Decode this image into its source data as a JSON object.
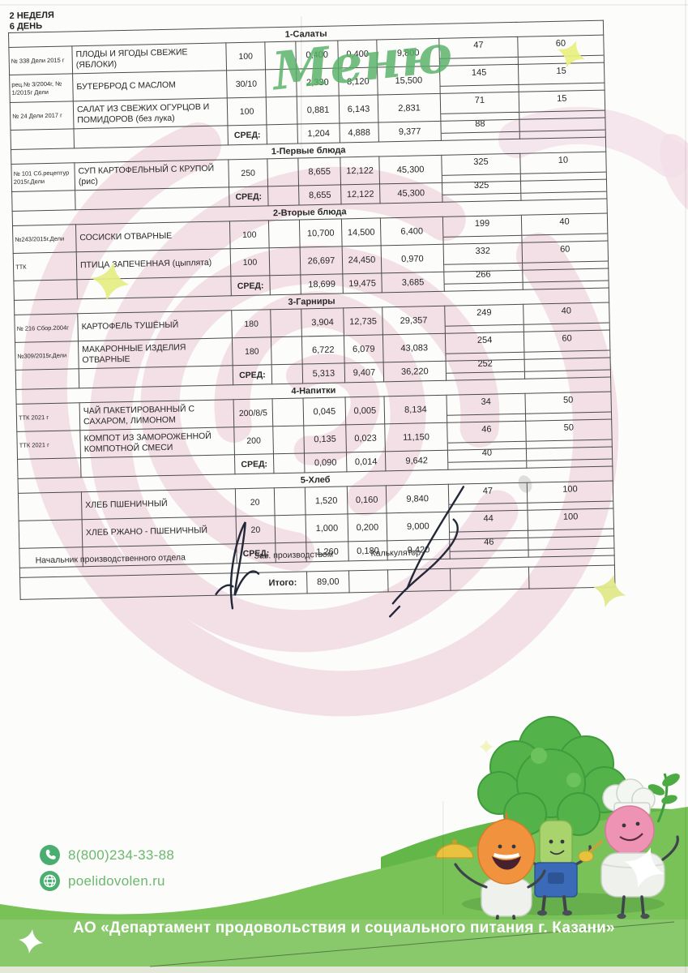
{
  "header": {
    "week": "2 НЕДЕЛЯ",
    "day": "6 ДЕНЬ"
  },
  "watermark": {
    "text": "Меню"
  },
  "menu_table": {
    "sections": [
      {
        "title": "1-Салаты",
        "rows": [
          {
            "ref": "№ 338 Дели 2015 г",
            "name": "ПЛОДЫ И ЯГОДЫ СВЕЖИЕ (ЯБЛОКИ)",
            "portion": "100",
            "v1": "0,400",
            "v2": "0,400",
            "v3": "9,800",
            "v4": "47",
            "v5": "60"
          },
          {
            "ref": "рец.№ 3/2004г, № 1/2015г Дели",
            "name": "БУТЕРБРОД С МАСЛОМ",
            "portion": "30/10",
            "v1": "2,330",
            "v2": "8,120",
            "v3": "15,500",
            "v4": "145",
            "v5": "15"
          },
          {
            "ref": "№ 24 Дели 2017 г",
            "name": "САЛАТ ИЗ СВЕЖИХ ОГУРЦОВ И ПОМИДОРОВ (без лука)",
            "portion": "100",
            "v1": "0,881",
            "v2": "6,143",
            "v3": "2,831",
            "v4": "71",
            "v5": "15"
          }
        ],
        "avg": {
          "label": "СРЕД:",
          "v1": "1,204",
          "v2": "4,888",
          "v3": "9,377",
          "v4": "88",
          "v5": ""
        }
      },
      {
        "title": "1-Первые блюда",
        "rows": [
          {
            "ref": "№ 101  Сб.рецептур 2015г.Дели",
            "name": "СУП КАРТОФЕЛЬНЫЙ С КРУПОЙ (рис)",
            "portion": "250",
            "v1": "8,655",
            "v2": "12,122",
            "v3": "45,300",
            "v4": "325",
            "v5": "10"
          }
        ],
        "avg": {
          "label": "СРЕД:",
          "v1": "8,655",
          "v2": "12,122",
          "v3": "45,300",
          "v4": "325",
          "v5": ""
        }
      },
      {
        "title": "2-Вторые блюда",
        "rows": [
          {
            "ref": "№243/2015г.Дели",
            "name": "СОСИСКИ ОТВАРНЫЕ",
            "portion": "100",
            "v1": "10,700",
            "v2": "14,500",
            "v3": "6,400",
            "v4": "199",
            "v5": "40"
          },
          {
            "ref": "ТТК",
            "name": "ПТИЦА ЗАПЕЧЕННАЯ (цыплята)",
            "portion": "100",
            "v1": "26,697",
            "v2": "24,450",
            "v3": "0,970",
            "v4": "332",
            "v5": "60"
          }
        ],
        "avg": {
          "label": "СРЕД:",
          "v1": "18,699",
          "v2": "19,475",
          "v3": "3,685",
          "v4": "266",
          "v5": ""
        }
      },
      {
        "title": "3-Гарниры",
        "rows": [
          {
            "ref": "№ 216 Сбор.2004г",
            "name": "КАРТОФЕЛЬ ТУШЁНЫЙ",
            "portion": "180",
            "v1": "3,904",
            "v2": "12,735",
            "v3": "29,357",
            "v4": "249",
            "v5": "40"
          },
          {
            "ref": "№309/2015г.Дели",
            "name": "МАКАРОННЫЕ ИЗДЕЛИЯ ОТВАРНЫЕ",
            "portion": "180",
            "v1": "6,722",
            "v2": "6,079",
            "v3": "43,083",
            "v4": "254",
            "v5": "60"
          }
        ],
        "avg": {
          "label": "СРЕД:",
          "v1": "5,313",
          "v2": "9,407",
          "v3": "36,220",
          "v4": "252",
          "v5": ""
        }
      },
      {
        "title": "4-Напитки",
        "rows": [
          {
            "ref": "ТТК 2021 г",
            "name": "ЧАЙ ПАКЕТИРОВАННЫЙ  С САХАРОМ, ЛИМОНОМ",
            "portion": "200/8/5",
            "v1": "0,045",
            "v2": "0,005",
            "v3": "8,134",
            "v4": "34",
            "v5": "50"
          },
          {
            "ref": "ТТК 2021 г",
            "name": "КОМПОТ ИЗ ЗАМОРОЖЕННОЙ КОМПОТНОЙ СМЕСИ",
            "portion": "200",
            "v1": "0,135",
            "v2": "0,023",
            "v3": "11,150",
            "v4": "46",
            "v5": "50"
          }
        ],
        "avg": {
          "label": "СРЕД:",
          "v1": "0,090",
          "v2": "0,014",
          "v3": "9,642",
          "v4": "40",
          "v5": ""
        }
      },
      {
        "title": "5-Хлеб",
        "rows": [
          {
            "ref": "",
            "name": "ХЛЕБ ПШЕНИЧНЫЙ",
            "portion": "20",
            "v1": "1,520",
            "v2": "0,160",
            "v3": "9,840",
            "v4": "47",
            "v5": "100"
          },
          {
            "ref": "",
            "name": "ХЛЕБ РЖАНО - ПШЕНИЧНЫЙ",
            "portion": "20",
            "v1": "1,000",
            "v2": "0,200",
            "v3": "9,000",
            "v4": "44",
            "v5": "100"
          }
        ],
        "avg": {
          "label": "СРЕД:",
          "v1": "1,260",
          "v2": "0,180",
          "v3": "9,420",
          "v4": "46",
          "v5": ""
        }
      }
    ],
    "total_label": "Итого:",
    "total_value": "89,00"
  },
  "signatures": {
    "labels": [
      "Начальник производственного отдела",
      "Зав. производством",
      "Калькулятор"
    ]
  },
  "contact": {
    "phone": "8(800)234-33-88",
    "website": "poelidovolen.ru"
  },
  "footer": {
    "organization": "АО «Департамент продовольствия и социального питания г. Казани»"
  },
  "decor": {
    "icons": [
      "phone-icon",
      "globe-icon",
      "sparkle-icon"
    ],
    "colors": {
      "footer_green": "#79c258",
      "hill_green": "#63b748",
      "watermark_green": "#58b167",
      "swirl_pink": "#f3dfe7",
      "star_yellow": "#e7f07e",
      "contact_text_green": "#6cb86f"
    }
  }
}
